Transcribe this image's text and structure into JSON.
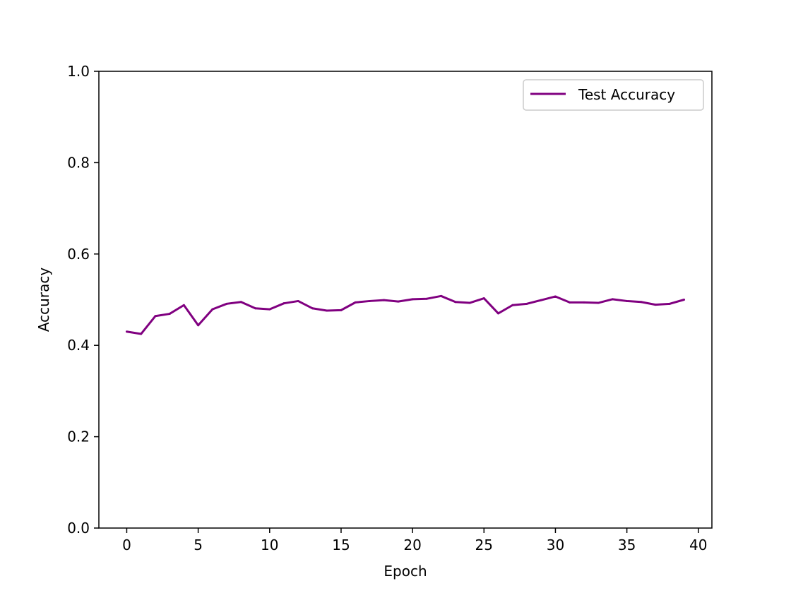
{
  "chart_data": {
    "type": "line",
    "title": "",
    "xlabel": "Epoch",
    "ylabel": "Accuracy",
    "xlim": [
      -1.95,
      40.95
    ],
    "ylim": [
      0.0,
      1.0
    ],
    "xticks": [
      0,
      5,
      10,
      15,
      20,
      25,
      30,
      35,
      40
    ],
    "xtick_labels": [
      "0",
      "5",
      "10",
      "15",
      "20",
      "25",
      "30",
      "35",
      "40"
    ],
    "yticks": [
      0.0,
      0.2,
      0.4,
      0.6,
      0.8,
      1.0
    ],
    "ytick_labels": [
      "0.0",
      "0.2",
      "0.4",
      "0.6",
      "0.8",
      "1.0"
    ],
    "grid": false,
    "legend_position": "top-right",
    "series": [
      {
        "name": "Test Accuracy",
        "color": "#800080",
        "x": [
          0,
          1,
          2,
          3,
          4,
          5,
          6,
          7,
          8,
          9,
          10,
          11,
          12,
          13,
          14,
          15,
          16,
          17,
          18,
          19,
          20,
          21,
          22,
          23,
          24,
          25,
          26,
          27,
          28,
          29,
          30,
          31,
          32,
          33,
          34,
          35,
          36,
          37,
          38,
          39
        ],
        "y": [
          0.43,
          0.425,
          0.464,
          0.469,
          0.488,
          0.444,
          0.479,
          0.491,
          0.495,
          0.481,
          0.479,
          0.492,
          0.497,
          0.481,
          0.476,
          0.477,
          0.494,
          0.497,
          0.499,
          0.496,
          0.501,
          0.502,
          0.508,
          0.495,
          0.493,
          0.503,
          0.47,
          0.488,
          0.491,
          0.499,
          0.507,
          0.494,
          0.494,
          0.493,
          0.501,
          0.497,
          0.495,
          0.489,
          0.491,
          0.5
        ]
      }
    ]
  }
}
